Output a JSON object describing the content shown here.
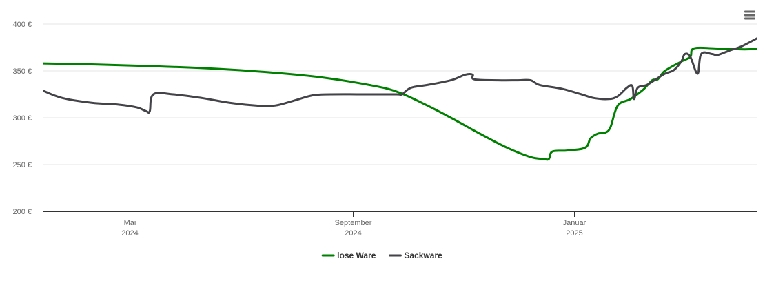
{
  "chart_data": {
    "type": "line",
    "title": "",
    "xlabel": "",
    "ylabel": "",
    "x_axis": {
      "type": "date",
      "range": [
        "2024-03-14",
        "2025-04-12"
      ],
      "ticks": [
        {
          "date": "2024-05-01",
          "label_line1": "Mai",
          "label_line2": "2024"
        },
        {
          "date": "2024-09-01",
          "label_line1": "September",
          "label_line2": "2024"
        },
        {
          "date": "2025-01-01",
          "label_line1": "Januar",
          "label_line2": "2025"
        }
      ]
    },
    "y_axis": {
      "range": [
        200,
        400
      ],
      "ticks": [
        {
          "value": 200,
          "label": "200 €"
        },
        {
          "value": 250,
          "label": "250 €"
        },
        {
          "value": 300,
          "label": "300 €"
        },
        {
          "value": 350,
          "label": "350 €"
        },
        {
          "value": 400,
          "label": "400 €"
        }
      ],
      "grid": true
    },
    "legend": {
      "position": "bottom-center"
    },
    "series": [
      {
        "name": "lose Ware",
        "color": "#008000",
        "points": [
          [
            "2024-03-14",
            358
          ],
          [
            "2024-04-10",
            357
          ],
          [
            "2024-05-15",
            355
          ],
          [
            "2024-06-20",
            352
          ],
          [
            "2024-07-20",
            348
          ],
          [
            "2024-08-15",
            343
          ],
          [
            "2024-09-10",
            335
          ],
          [
            "2024-09-25",
            328
          ],
          [
            "2024-10-10",
            315
          ],
          [
            "2024-10-25",
            300
          ],
          [
            "2024-11-10",
            283
          ],
          [
            "2024-11-25",
            268
          ],
          [
            "2024-12-08",
            258
          ],
          [
            "2024-12-15",
            256
          ],
          [
            "2024-12-18",
            256
          ],
          [
            "2024-12-20",
            264
          ],
          [
            "2024-12-28",
            265
          ],
          [
            "2025-01-07",
            268
          ],
          [
            "2025-01-10",
            278
          ],
          [
            "2025-01-14",
            283
          ],
          [
            "2025-01-18",
            284
          ],
          [
            "2025-01-21",
            290
          ],
          [
            "2025-01-25",
            313
          ],
          [
            "2025-02-01",
            320
          ],
          [
            "2025-02-08",
            330
          ],
          [
            "2025-02-13",
            340
          ],
          [
            "2025-02-16",
            341
          ],
          [
            "2025-02-20",
            350
          ],
          [
            "2025-03-01",
            360
          ],
          [
            "2025-03-06",
            365
          ],
          [
            "2025-03-08",
            374
          ],
          [
            "2025-03-20",
            374
          ],
          [
            "2025-04-05",
            373
          ],
          [
            "2025-04-12",
            374
          ]
        ]
      },
      {
        "name": "Sackware",
        "color": "#434348",
        "points": [
          [
            "2024-03-14",
            329
          ],
          [
            "2024-03-25",
            321
          ],
          [
            "2024-04-10",
            316
          ],
          [
            "2024-04-25",
            314
          ],
          [
            "2024-05-05",
            311
          ],
          [
            "2024-05-10",
            307
          ],
          [
            "2024-05-12",
            307
          ],
          [
            "2024-05-14",
            325
          ],
          [
            "2024-05-25",
            325
          ],
          [
            "2024-06-10",
            321
          ],
          [
            "2024-06-25",
            316
          ],
          [
            "2024-07-10",
            313
          ],
          [
            "2024-07-20",
            313
          ],
          [
            "2024-07-30",
            318
          ],
          [
            "2024-08-10",
            324
          ],
          [
            "2024-08-20",
            325
          ],
          [
            "2024-09-10",
            325
          ],
          [
            "2024-09-25",
            325
          ],
          [
            "2024-09-28",
            325
          ],
          [
            "2024-10-03",
            332
          ],
          [
            "2024-10-12",
            335
          ],
          [
            "2024-10-25",
            340
          ],
          [
            "2024-11-02",
            346
          ],
          [
            "2024-11-06",
            346
          ],
          [
            "2024-11-07",
            341
          ],
          [
            "2024-11-20",
            340
          ],
          [
            "2024-12-01",
            340
          ],
          [
            "2024-12-08",
            340
          ],
          [
            "2024-12-13",
            335
          ],
          [
            "2024-12-25",
            331
          ],
          [
            "2025-01-05",
            325
          ],
          [
            "2025-01-12",
            321
          ],
          [
            "2025-01-20",
            320
          ],
          [
            "2025-01-25",
            323
          ],
          [
            "2025-01-30",
            332
          ],
          [
            "2025-02-02",
            334
          ],
          [
            "2025-02-03",
            320
          ],
          [
            "2025-02-05",
            332
          ],
          [
            "2025-02-10",
            335
          ],
          [
            "2025-02-15",
            341
          ],
          [
            "2025-02-20",
            347
          ],
          [
            "2025-02-25",
            351
          ],
          [
            "2025-03-01",
            360
          ],
          [
            "2025-03-03",
            368
          ],
          [
            "2025-03-06",
            365
          ],
          [
            "2025-03-10",
            347
          ],
          [
            "2025-03-12",
            368
          ],
          [
            "2025-03-18",
            368
          ],
          [
            "2025-03-21",
            367
          ],
          [
            "2025-03-28",
            372
          ],
          [
            "2025-04-03",
            376
          ],
          [
            "2025-04-12",
            385
          ]
        ]
      }
    ]
  },
  "colors": {
    "axis_line": "#333333",
    "grid_line": "#e6e6e6",
    "menu_icon": "#666666"
  },
  "menu": {
    "icon": "hamburger-menu-icon"
  }
}
